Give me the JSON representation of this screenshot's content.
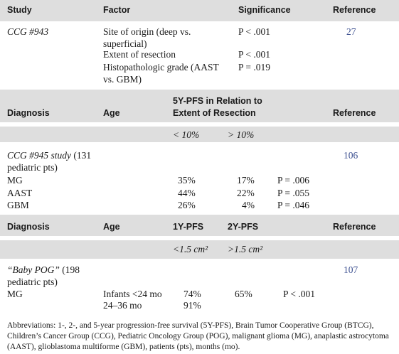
{
  "section1": {
    "headers": {
      "study": "Study",
      "factor": "Factor",
      "significance": "Significance",
      "reference": "Reference"
    },
    "study": "CCG #943",
    "rows": [
      {
        "factor": "Site of origin (deep vs. superficial)",
        "significance": "P < .001"
      },
      {
        "factor": "Extent of resection",
        "significance": "P < .001"
      },
      {
        "factor": "Histopathologic grade (AAST vs. GBM)",
        "significance": "P = .019"
      }
    ],
    "reference": "27"
  },
  "section2": {
    "headers": {
      "diagnosis": "Diagnosis",
      "age": "Age",
      "pfs_line1": "5Y-PFS in Relation to",
      "pfs_line2": "Extent of Resection",
      "reference": "Reference"
    },
    "subheaders": {
      "lt": "< 10%",
      "gt": "> 10%"
    },
    "study_italic": "CCG #945 study",
    "study_rest": " (131 pediatric pts)",
    "reference": "106",
    "rows": [
      {
        "diagnosis": "MG",
        "lt": "35%",
        "gt": "17%",
        "p": "P = .006"
      },
      {
        "diagnosis": "AAST",
        "lt": "44%",
        "gt": "22%",
        "p": "P = .055"
      },
      {
        "diagnosis": "GBM",
        "lt": "26%",
        "gt": "4%",
        "p": "P = .046"
      }
    ]
  },
  "section3": {
    "headers": {
      "diagnosis": "Diagnosis",
      "age": "Age",
      "pfs1": "1Y-PFS",
      "pfs2": "2Y-PFS",
      "reference": "Reference"
    },
    "subheaders": {
      "small": "<1.5 cm²",
      "large": ">1.5 cm²"
    },
    "study_italic": "“Baby POG”",
    "study_rest": " (198 pediatric pts)",
    "reference": "107",
    "diagnosis": "MG",
    "rows": [
      {
        "age": "Infants <24 mo",
        "pfs1": "74%",
        "pfs2": "65%",
        "p": "P < .001"
      },
      {
        "age": "24–36 mo",
        "pfs1": "91%",
        "pfs2": "",
        "p": ""
      }
    ]
  },
  "footnote": "Abbreviations: 1-, 2-, and 5-year progression-free survival (5Y-PFS), Brain Tumor Cooperative Group (BTCG), Children’s Cancer Group (CCG), Pediatric Oncology Group (POG), malignant glioma (MG), anaplastic astrocytoma (AAST), glioblastoma multiforme (GBM), patients (pts), months (mo)."
}
